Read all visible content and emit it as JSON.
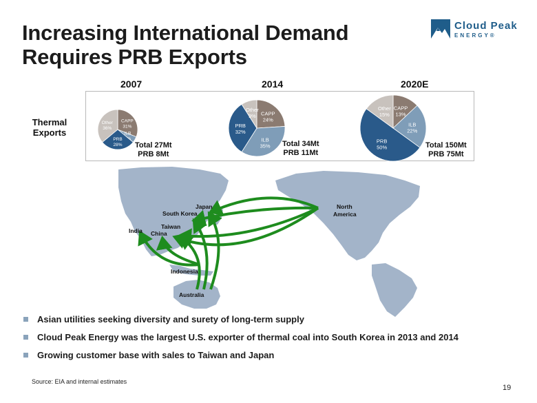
{
  "title_line1": "Increasing International Demand",
  "title_line2": "Requires PRB Exports",
  "logo": {
    "name": "Cloud Peak",
    "sub": "ENERGY®"
  },
  "colors": {
    "capp": "#8b7b71",
    "ilb": "#7f9db8",
    "prb": "#2a5a8a",
    "other": "#c8c2bd",
    "arrow": "#1e8c1e",
    "land": "#a3b4c9"
  },
  "thermal_label": "Thermal Exports",
  "chart_data": [
    {
      "type": "pie",
      "title": "2007",
      "slices": [
        {
          "label": "CAPP",
          "pct": "31%",
          "value": 31
        },
        {
          "label": "ILB",
          "pct": "5%",
          "value": 5
        },
        {
          "label": "PRB",
          "pct": "28%",
          "value": 28
        },
        {
          "label": "Other",
          "pct": "36%",
          "value": 36
        }
      ],
      "total_line1": "Total 27Mt",
      "total_line2": "PRB 8Mt"
    },
    {
      "type": "pie",
      "title": "2014",
      "slices": [
        {
          "label": "CAPP",
          "pct": "24%",
          "value": 24
        },
        {
          "label": "ILB",
          "pct": "35%",
          "value": 35
        },
        {
          "label": "PRB",
          "pct": "32%",
          "value": 32
        },
        {
          "label": "Other",
          "pct": "9%",
          "value": 9
        }
      ],
      "total_line1": "Total 34Mt",
      "total_line2": "PRB 11Mt"
    },
    {
      "type": "pie",
      "title": "2020E",
      "slices": [
        {
          "label": "CAPP",
          "pct": "13%",
          "value": 13
        },
        {
          "label": "ILB",
          "pct": "22%",
          "value": 22
        },
        {
          "label": "PRB",
          "pct": "50%",
          "value": 50
        },
        {
          "label": "Other",
          "pct": "15%",
          "value": 15
        }
      ],
      "total_line1": "Total 150Mt",
      "total_line2": "PRB 75Mt"
    }
  ],
  "map_labels": {
    "japan": "Japan",
    "south_korea": "South Korea",
    "taiwan": "Taiwan",
    "india": "India",
    "china": "China",
    "indonesia": "Indonesia",
    "australia": "Australia",
    "north_america_1": "North",
    "north_america_2": "America"
  },
  "bullets": [
    "Asian utilities seeking diversity and surety of long-term supply",
    "Cloud Peak Energy was the largest U.S. exporter of thermal coal into South Korea in 2013 and 2014",
    "Growing customer base with sales to Taiwan and Japan"
  ],
  "source": "Source:  EIA and internal estimates",
  "page_number": "19"
}
